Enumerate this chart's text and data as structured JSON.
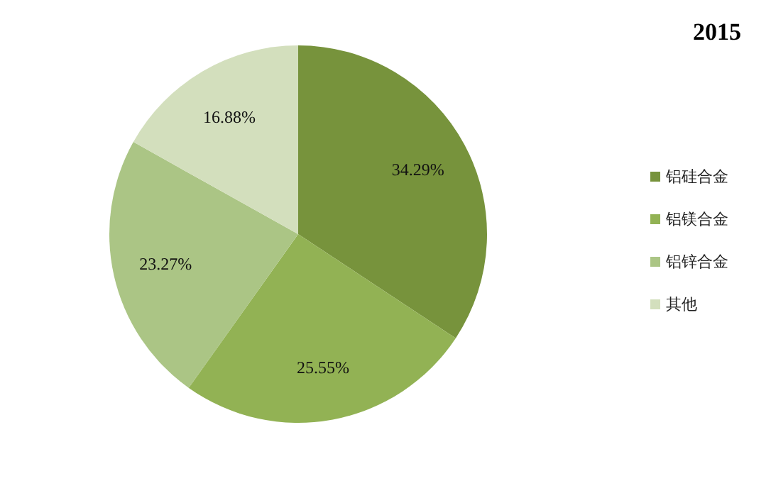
{
  "chart_data": {
    "type": "pie",
    "title": "2015",
    "categories": [
      "铝硅合金",
      "铝镁合金",
      "铝锌合金",
      "其他"
    ],
    "values": [
      34.29,
      25.55,
      23.27,
      16.88
    ],
    "colors": [
      "#77933c",
      "#92b254",
      "#abc585",
      "#d3dfbd"
    ],
    "value_labels": [
      "34.29%",
      "25.55%",
      "23.27%",
      "16.88%"
    ],
    "legend": "right"
  }
}
